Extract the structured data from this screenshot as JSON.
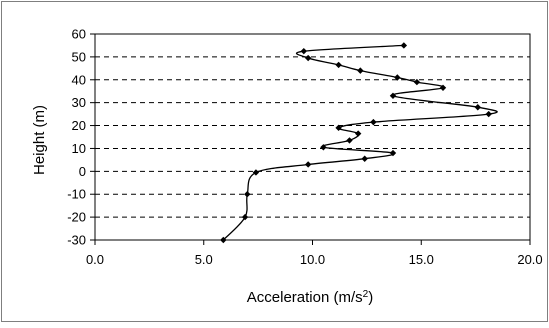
{
  "chart_data": {
    "type": "line",
    "xlabel": "Acceleration (m/s",
    "xlabel_sup": "2",
    "xlabel_close": ")",
    "ylabel": "Height (m)",
    "xlim": [
      0,
      20
    ],
    "ylim": [
      -30,
      60
    ],
    "x_ticks": [
      "0.0",
      "5.0",
      "10.0",
      "15.0",
      "20.0"
    ],
    "y_ticks": [
      "-30",
      "-20",
      "-10",
      "0",
      "10",
      "20",
      "30",
      "40",
      "50",
      "60"
    ],
    "grid": "horizontal dashed",
    "series": [
      {
        "marker": "diamond",
        "points": [
          {
            "x": 14.2,
            "y": 55
          },
          {
            "x": 9.6,
            "y": 52.5
          },
          {
            "x": 9.8,
            "y": 49.5
          },
          {
            "x": 11.2,
            "y": 46.5
          },
          {
            "x": 12.2,
            "y": 44
          },
          {
            "x": 13.9,
            "y": 41
          },
          {
            "x": 14.8,
            "y": 39
          },
          {
            "x": 16.0,
            "y": 36.5
          },
          {
            "x": 13.7,
            "y": 33
          },
          {
            "x": 17.6,
            "y": 28
          },
          {
            "x": 18.1,
            "y": 25
          },
          {
            "x": 12.8,
            "y": 21.5
          },
          {
            "x": 11.2,
            "y": 19
          },
          {
            "x": 12.1,
            "y": 16.5
          },
          {
            "x": 11.7,
            "y": 13.5
          },
          {
            "x": 10.5,
            "y": 10.5
          },
          {
            "x": 13.7,
            "y": 8
          },
          {
            "x": 12.4,
            "y": 5.5
          },
          {
            "x": 9.8,
            "y": 3
          },
          {
            "x": 7.4,
            "y": -0.5
          },
          {
            "x": 7.0,
            "y": -10
          },
          {
            "x": 6.9,
            "y": -20
          },
          {
            "x": 5.9,
            "y": -30
          }
        ]
      }
    ]
  }
}
